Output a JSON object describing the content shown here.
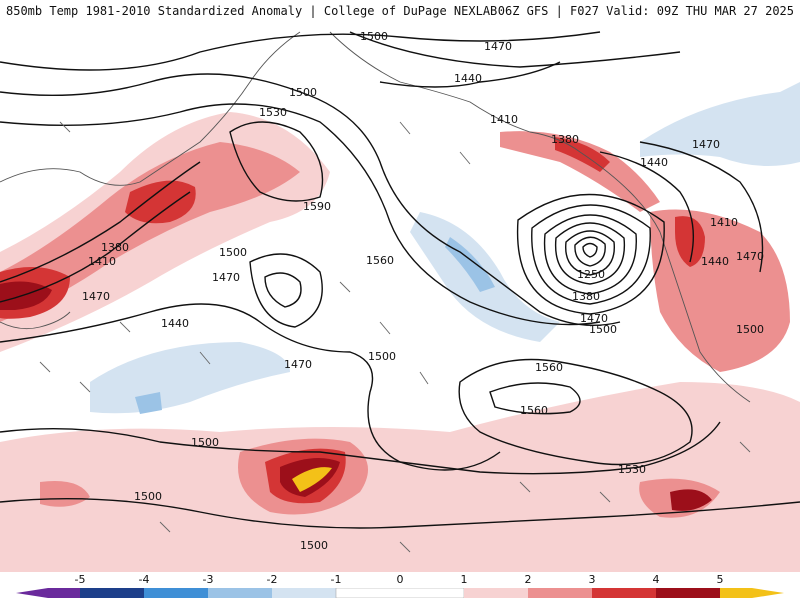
{
  "header": {
    "left": "850mb Temp 1981-2010 Standardized Anomaly | College of DuPage NEXLAB",
    "right": "06Z GFS | F027 Valid: 09Z THU MAR 27 2025"
  },
  "colors": {
    "pos1": "#f7d2d2",
    "pos2": "#ec9090",
    "pos3": "#d43535",
    "pos4": "#9c0f1a",
    "pos5": "#f3c118",
    "neg1": "#d4e3f1",
    "neg2": "#9bc3e6",
    "neg3": "#3f8fd6",
    "neg4": "#1d3f8a",
    "neg5": "#6a2a9c",
    "contour": "#111111",
    "coast": "#555555",
    "wind": "#666666"
  },
  "contour_labels": [
    {
      "id": "1500-top",
      "text": "1500"
    },
    {
      "id": "1470-top",
      "text": "1470"
    },
    {
      "id": "1440-top",
      "text": "1440"
    },
    {
      "id": "1500-a",
      "text": "1500"
    },
    {
      "id": "1530-a",
      "text": "1530"
    },
    {
      "id": "1410-a",
      "text": "1410"
    },
    {
      "id": "1380-a",
      "text": "1380"
    },
    {
      "id": "1440-ne",
      "text": "1440"
    },
    {
      "id": "1470-ne",
      "text": "1470"
    },
    {
      "id": "1590",
      "text": "1590"
    },
    {
      "id": "1380-w",
      "text": "1380"
    },
    {
      "id": "1410-w",
      "text": "1410"
    },
    {
      "id": "1500-c",
      "text": "1500"
    },
    {
      "id": "1560-c",
      "text": "1560"
    },
    {
      "id": "1470-w",
      "text": "1470"
    },
    {
      "id": "1470-c",
      "text": "1470"
    },
    {
      "id": "1440-w",
      "text": "1440"
    },
    {
      "id": "1470-s",
      "text": "1470"
    },
    {
      "id": "1500-m",
      "text": "1500"
    },
    {
      "id": "1410-e",
      "text": "1410"
    },
    {
      "id": "1440-e",
      "text": "1440"
    },
    {
      "id": "1470-e",
      "text": "1470"
    },
    {
      "id": "1250",
      "text": "1250"
    },
    {
      "id": "1380-low",
      "text": "1380"
    },
    {
      "id": "1470-low",
      "text": "1470"
    },
    {
      "id": "1500-low",
      "text": "1500"
    },
    {
      "id": "1500-e",
      "text": "1500"
    },
    {
      "id": "1560-s1",
      "text": "1560"
    },
    {
      "id": "1560-s2",
      "text": "1560"
    },
    {
      "id": "1500-sw",
      "text": "1500"
    },
    {
      "id": "1530-s",
      "text": "1530"
    },
    {
      "id": "1500-s",
      "text": "1500"
    },
    {
      "id": "1500-bot",
      "text": "1500"
    }
  ],
  "legend": {
    "ticks": [
      "-5",
      "-4",
      "-3",
      "-2",
      "-1",
      "0",
      "1",
      "2",
      "3",
      "4",
      "5"
    ]
  }
}
